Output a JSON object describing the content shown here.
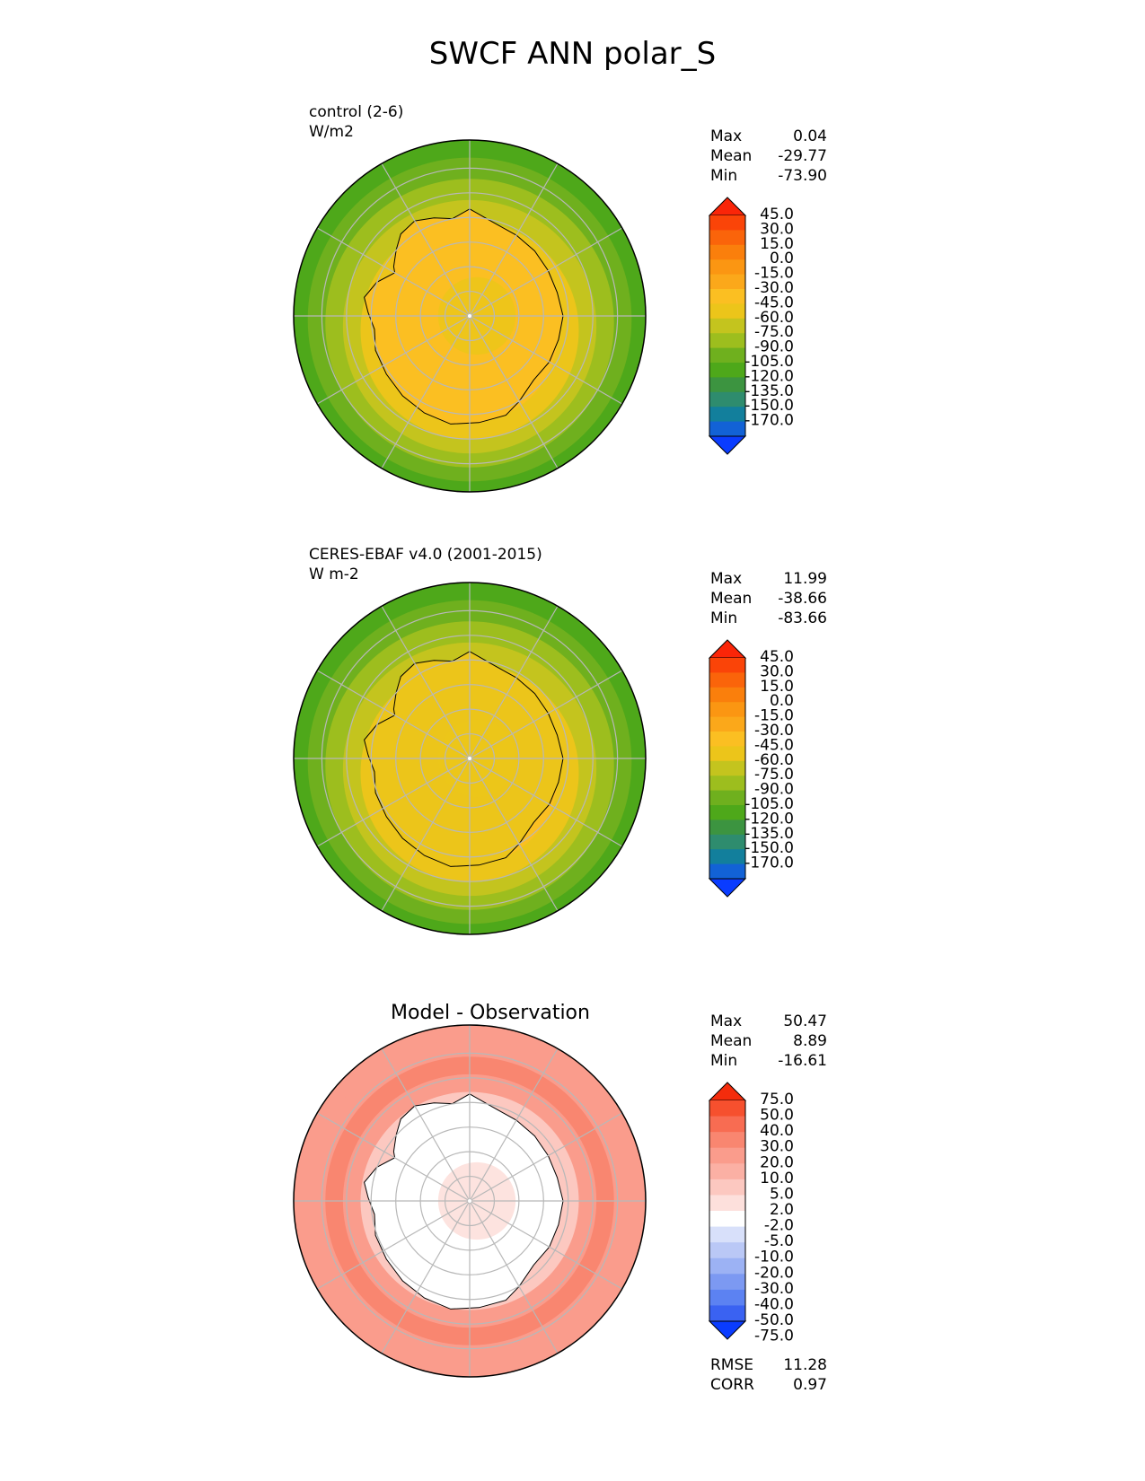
{
  "title": "SWCF ANN polar_S",
  "colors": {
    "abs": [
      "#0a3cff",
      "#1262d6",
      "#127f9c",
      "#2e8c6e",
      "#3c9440",
      "#4ea81a",
      "#6fb01e",
      "#9dbe1e",
      "#c4c41e",
      "#ecc51a",
      "#fbbf22",
      "#fba81a",
      "#fb9612",
      "#fa7f0c",
      "#fa640a",
      "#fa4408",
      "#fa2508"
    ],
    "diff": [
      "#0a3cff",
      "#3a62f2",
      "#5c82f2",
      "#7c99f2",
      "#9cb2f4",
      "#bac8f6",
      "#d8e0fa",
      "#ffffff",
      "#fde0dc",
      "#fcc8c0",
      "#fbb0a4",
      "#fa9c8c",
      "#f98670",
      "#f86c52",
      "#f6502e",
      "#f42c0c"
    ]
  },
  "chart_data": [
    {
      "type": "heatmap",
      "projection": "south-polar",
      "title": "",
      "label_line1": "control (2-6)",
      "label_line2": "W/m2",
      "stats": [
        {
          "name": "Max",
          "value": "0.04"
        },
        {
          "name": "Mean",
          "value": "-29.77"
        },
        {
          "name": "Min",
          "value": "-73.90"
        }
      ],
      "colorbar_ticks": [
        "45.0",
        "30.0",
        "15.0",
        "0.0",
        "-15.0",
        "-30.0",
        "-45.0",
        "-60.0",
        "-75.0",
        "-90.0",
        "-105.0",
        "-120.0",
        "-135.0",
        "-150.0",
        "-170.0"
      ],
      "field_levels": [
        -95,
        -80,
        -65,
        -48,
        -35,
        -22
      ],
      "extra_stats": []
    },
    {
      "type": "heatmap",
      "projection": "south-polar",
      "title": "",
      "label_line1": "CERES-EBAF v4.0 (2001-2015)",
      "label_line2": "W m-2",
      "stats": [
        {
          "name": "Max",
          "value": "11.99"
        },
        {
          "name": "Mean",
          "value": "-38.66"
        },
        {
          "name": "Min",
          "value": "-83.66"
        }
      ],
      "colorbar_ticks": [
        "45.0",
        "30.0",
        "15.0",
        "0.0",
        "-15.0",
        "-30.0",
        "-45.0",
        "-60.0",
        "-75.0",
        "-90.0",
        "-105.0",
        "-120.0",
        "-135.0",
        "-150.0",
        "-170.0"
      ],
      "field_levels": [
        -100,
        -85,
        -72,
        -55,
        -40,
        -25
      ],
      "extra_stats": []
    },
    {
      "type": "heatmap",
      "projection": "south-polar",
      "title": "Model - Observation",
      "label_line1": "",
      "label_line2": "",
      "stats": [
        {
          "name": "Max",
          "value": "50.47"
        },
        {
          "name": "Mean",
          "value": "8.89"
        },
        {
          "name": "Min",
          "value": "-16.61"
        }
      ],
      "colorbar_ticks": [
        "75.0",
        "50.0",
        "40.0",
        "30.0",
        "20.0",
        "10.0",
        "5.0",
        "2.0",
        "-2.0",
        "-5.0",
        "-10.0",
        "-20.0",
        "-30.0",
        "-40.0",
        "-50.0",
        "-75.0"
      ],
      "field_levels": [
        12,
        14,
        22,
        16,
        4,
        1
      ],
      "extra_stats": [
        {
          "name": "RMSE",
          "value": "11.28"
        },
        {
          "name": "CORR",
          "value": "0.97"
        }
      ]
    }
  ]
}
